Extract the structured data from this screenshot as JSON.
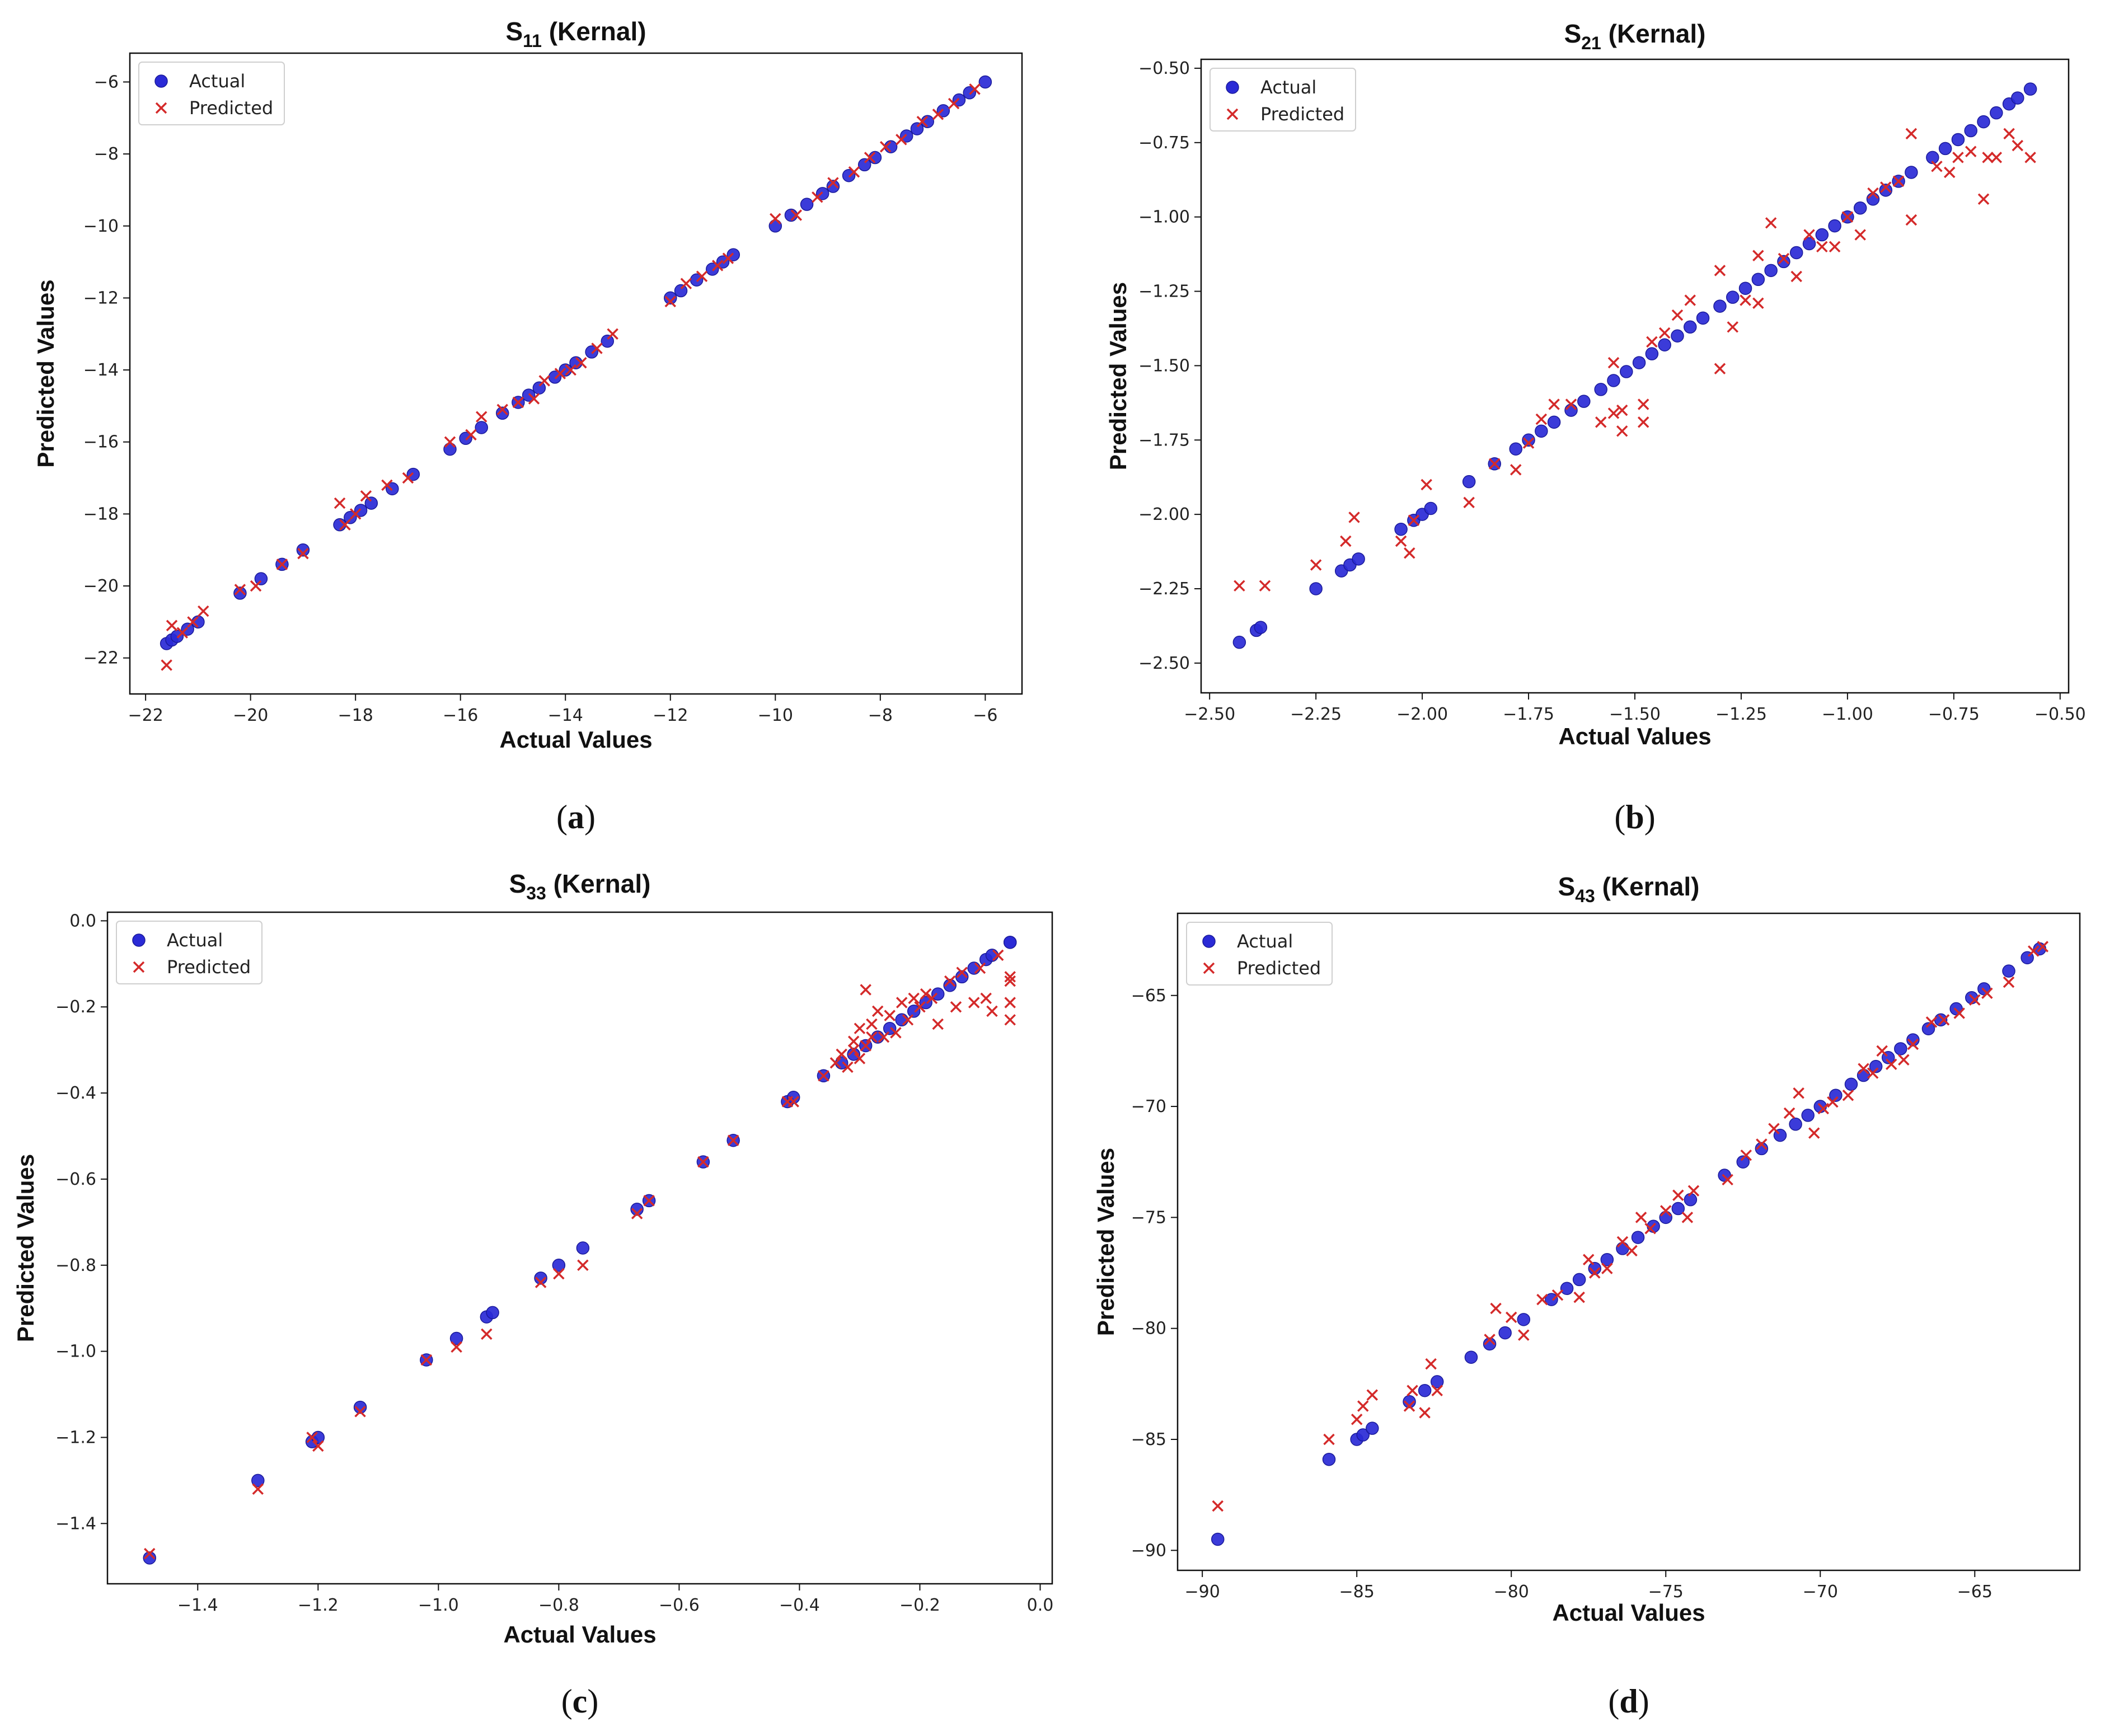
{
  "chart_data": [
    {
      "type": "scatter",
      "id": "a",
      "title": "S",
      "title_sub": "11",
      "title_rest": " (Kernal)",
      "xlabel": "Actual Values",
      "ylabel": "Predicted Values",
      "caption": "a",
      "xlim": [
        -22.3,
        -5.3
      ],
      "ylim": [
        -23.0,
        -5.2
      ],
      "xticks": [
        -22,
        -20,
        -18,
        -16,
        -14,
        -12,
        -10,
        -8,
        -6
      ],
      "yticks": [
        -22,
        -20,
        -18,
        -16,
        -14,
        -12,
        -10,
        -8,
        -6
      ],
      "legend": [
        "Actual",
        "Predicted"
      ],
      "legend_position": "top-left",
      "series": [
        {
          "name": "Actual",
          "marker": "circle",
          "color": "#2a2ad6",
          "x": [
            -21.6,
            -21.5,
            -21.4,
            -21.2,
            -21.0,
            -20.2,
            -19.8,
            -19.4,
            -19.0,
            -18.3,
            -18.1,
            -17.9,
            -17.7,
            -17.3,
            -16.9,
            -16.2,
            -15.9,
            -15.6,
            -15.2,
            -14.9,
            -14.7,
            -14.5,
            -14.2,
            -14.0,
            -13.8,
            -13.5,
            -13.2,
            -12.0,
            -11.8,
            -11.5,
            -11.2,
            -11.0,
            -10.8,
            -10.0,
            -9.7,
            -9.4,
            -9.1,
            -8.9,
            -8.6,
            -8.3,
            -8.1,
            -7.8,
            -7.5,
            -7.3,
            -7.1,
            -6.8,
            -6.5,
            -6.3,
            -6.0
          ],
          "y": [
            -21.6,
            -21.5,
            -21.4,
            -21.2,
            -21.0,
            -20.2,
            -19.8,
            -19.4,
            -19.0,
            -18.3,
            -18.1,
            -17.9,
            -17.7,
            -17.3,
            -16.9,
            -16.2,
            -15.9,
            -15.6,
            -15.2,
            -14.9,
            -14.7,
            -14.5,
            -14.2,
            -14.0,
            -13.8,
            -13.5,
            -13.2,
            -12.0,
            -11.8,
            -11.5,
            -11.2,
            -11.0,
            -10.8,
            -10.0,
            -9.7,
            -9.4,
            -9.1,
            -8.9,
            -8.6,
            -8.3,
            -8.1,
            -7.8,
            -7.5,
            -7.3,
            -7.1,
            -6.8,
            -6.5,
            -6.3,
            -6.0
          ]
        },
        {
          "name": "Predicted",
          "marker": "x",
          "color": "#d42a2a",
          "x": [
            -21.6,
            -21.5,
            -21.3,
            -21.1,
            -20.9,
            -20.2,
            -19.9,
            -19.4,
            -19.0,
            -18.3,
            -18.2,
            -18.0,
            -17.8,
            -17.4,
            -17.0,
            -16.2,
            -15.8,
            -15.6,
            -15.2,
            -14.9,
            -14.6,
            -14.4,
            -14.1,
            -13.9,
            -13.7,
            -13.4,
            -13.1,
            -12.0,
            -11.7,
            -11.4,
            -11.1,
            -10.9,
            -10.0,
            -9.6,
            -9.2,
            -8.9,
            -8.5,
            -8.2,
            -7.9,
            -7.6,
            -7.2,
            -6.9,
            -6.6,
            -6.2
          ],
          "y": [
            -22.2,
            -21.1,
            -21.3,
            -21.0,
            -20.7,
            -20.1,
            -20.0,
            -19.4,
            -19.1,
            -17.7,
            -18.3,
            -18.0,
            -17.5,
            -17.2,
            -17.0,
            -16.0,
            -15.8,
            -15.3,
            -15.1,
            -14.9,
            -14.8,
            -14.3,
            -14.1,
            -14.0,
            -13.8,
            -13.4,
            -13.0,
            -12.1,
            -11.6,
            -11.4,
            -11.1,
            -10.9,
            -9.8,
            -9.7,
            -9.2,
            -8.8,
            -8.5,
            -8.1,
            -7.8,
            -7.6,
            -7.1,
            -6.9,
            -6.6,
            -6.2
          ]
        }
      ]
    },
    {
      "type": "scatter",
      "id": "b",
      "title": "S",
      "title_sub": "21",
      "title_rest": " (Kernal)",
      "xlabel": "Actual Values",
      "ylabel": "Predicted Values",
      "caption": "b",
      "xlim": [
        -2.52,
        -0.48
      ],
      "ylim": [
        -2.6,
        -0.47
      ],
      "xticks": [
        -2.5,
        -2.25,
        -2.0,
        -1.75,
        -1.5,
        -1.25,
        -1.0,
        -0.75,
        -0.5
      ],
      "xtick_labels": [
        "−2.50",
        "−2.25",
        "−2.00",
        "−1.75",
        "−1.50",
        "−1.25",
        "−1.00",
        "−0.75",
        "−0.50"
      ],
      "yticks": [
        -2.5,
        -2.25,
        -2.0,
        -1.75,
        -1.5,
        -1.25,
        -1.0,
        -0.75,
        -0.5
      ],
      "ytick_labels": [
        "−2.50",
        "−2.25",
        "−2.00",
        "−1.75",
        "−1.50",
        "−1.25",
        "−1.00",
        "−0.75",
        "−0.50"
      ],
      "legend": [
        "Actual",
        "Predicted"
      ],
      "legend_position": "top-left",
      "series": [
        {
          "name": "Actual",
          "marker": "circle",
          "color": "#2a2ad6",
          "x": [
            -2.43,
            -2.39,
            -2.38,
            -2.25,
            -2.19,
            -2.17,
            -2.15,
            -2.05,
            -2.02,
            -2.0,
            -1.98,
            -1.89,
            -1.83,
            -1.78,
            -1.75,
            -1.72,
            -1.69,
            -1.65,
            -1.62,
            -1.58,
            -1.55,
            -1.52,
            -1.49,
            -1.46,
            -1.43,
            -1.4,
            -1.37,
            -1.34,
            -1.3,
            -1.27,
            -1.24,
            -1.21,
            -1.18,
            -1.15,
            -1.12,
            -1.09,
            -1.06,
            -1.03,
            -1.0,
            -0.97,
            -0.94,
            -0.91,
            -0.88,
            -0.85,
            -0.8,
            -0.77,
            -0.74,
            -0.71,
            -0.68,
            -0.65,
            -0.62,
            -0.6,
            -0.57
          ],
          "y": [
            -2.43,
            -2.39,
            -2.38,
            -2.25,
            -2.19,
            -2.17,
            -2.15,
            -2.05,
            -2.02,
            -2.0,
            -1.98,
            -1.89,
            -1.83,
            -1.78,
            -1.75,
            -1.72,
            -1.69,
            -1.65,
            -1.62,
            -1.58,
            -1.55,
            -1.52,
            -1.49,
            -1.46,
            -1.43,
            -1.4,
            -1.37,
            -1.34,
            -1.3,
            -1.27,
            -1.24,
            -1.21,
            -1.18,
            -1.15,
            -1.12,
            -1.09,
            -1.06,
            -1.03,
            -1.0,
            -0.97,
            -0.94,
            -0.91,
            -0.88,
            -0.85,
            -0.8,
            -0.77,
            -0.74,
            -0.71,
            -0.68,
            -0.65,
            -0.62,
            -0.6,
            -0.57
          ]
        },
        {
          "name": "Predicted",
          "marker": "x",
          "color": "#d42a2a",
          "x": [
            -2.43,
            -2.37,
            -2.25,
            -2.18,
            -2.16,
            -2.05,
            -2.03,
            -2.02,
            -1.99,
            -1.89,
            -1.83,
            -1.78,
            -1.75,
            -1.72,
            -1.69,
            -1.65,
            -1.58,
            -1.55,
            -1.55,
            -1.53,
            -1.53,
            -1.48,
            -1.48,
            -1.46,
            -1.43,
            -1.4,
            -1.37,
            -1.3,
            -1.3,
            -1.27,
            -1.24,
            -1.21,
            -1.21,
            -1.18,
            -1.15,
            -1.12,
            -1.09,
            -1.06,
            -1.03,
            -1.0,
            -0.97,
            -0.94,
            -0.91,
            -0.88,
            -0.85,
            -0.85,
            -0.79,
            -0.76,
            -0.74,
            -0.71,
            -0.68,
            -0.67,
            -0.65,
            -0.62,
            -0.6,
            -0.57
          ],
          "y": [
            -2.24,
            -2.24,
            -2.17,
            -2.09,
            -2.01,
            -2.09,
            -2.13,
            -2.02,
            -1.9,
            -1.96,
            -1.83,
            -1.85,
            -1.76,
            -1.68,
            -1.63,
            -1.63,
            -1.69,
            -1.49,
            -1.66,
            -1.72,
            -1.65,
            -1.63,
            -1.69,
            -1.42,
            -1.39,
            -1.33,
            -1.28,
            -1.51,
            -1.18,
            -1.37,
            -1.28,
            -1.29,
            -1.13,
            -1.02,
            -1.14,
            -1.2,
            -1.06,
            -1.1,
            -1.1,
            -1.0,
            -1.06,
            -0.92,
            -0.9,
            -0.88,
            -0.72,
            -1.01,
            -0.83,
            -0.85,
            -0.8,
            -0.78,
            -0.94,
            -0.8,
            -0.8,
            -0.72,
            -0.76,
            -0.8
          ]
        }
      ]
    },
    {
      "type": "scatter",
      "id": "c",
      "title": "S",
      "title_sub": "33",
      "title_rest": " (Kernal)",
      "xlabel": "Actual Values",
      "ylabel": "Predicted Values",
      "caption": "c",
      "xlim": [
        -1.55,
        0.02
      ],
      "ylim": [
        -1.54,
        0.02
      ],
      "xticks": [
        -1.4,
        -1.2,
        -1.0,
        -0.8,
        -0.6,
        -0.4,
        -0.2,
        0.0
      ],
      "xtick_labels": [
        "−1.4",
        "−1.2",
        "−1.0",
        "−0.8",
        "−0.6",
        "−0.4",
        "−0.2",
        "0.0"
      ],
      "yticks": [
        -1.4,
        -1.2,
        -1.0,
        -0.8,
        -0.6,
        -0.4,
        -0.2,
        0.0
      ],
      "ytick_labels": [
        "−1.4",
        "−1.2",
        "−1.0",
        "−0.8",
        "−0.6",
        "−0.4",
        "−0.2",
        "0.0"
      ],
      "legend": [
        "Actual",
        "Predicted"
      ],
      "legend_position": "top-left",
      "series": [
        {
          "name": "Actual",
          "marker": "circle",
          "color": "#2a2ad6",
          "x": [
            -1.48,
            -1.3,
            -1.21,
            -1.2,
            -1.13,
            -1.02,
            -0.97,
            -0.92,
            -0.91,
            -0.83,
            -0.8,
            -0.76,
            -0.67,
            -0.65,
            -0.56,
            -0.51,
            -0.42,
            -0.41,
            -0.36,
            -0.33,
            -0.31,
            -0.29,
            -0.27,
            -0.25,
            -0.23,
            -0.21,
            -0.19,
            -0.17,
            -0.15,
            -0.13,
            -0.11,
            -0.09,
            -0.08,
            -0.05,
            -0.05
          ],
          "y": [
            -1.48,
            -1.3,
            -1.21,
            -1.2,
            -1.13,
            -1.02,
            -0.97,
            -0.92,
            -0.91,
            -0.83,
            -0.8,
            -0.76,
            -0.67,
            -0.65,
            -0.56,
            -0.51,
            -0.42,
            -0.41,
            -0.36,
            -0.33,
            -0.31,
            -0.29,
            -0.27,
            -0.25,
            -0.23,
            -0.21,
            -0.19,
            -0.17,
            -0.15,
            -0.13,
            -0.11,
            -0.09,
            -0.08,
            -0.05,
            -0.05
          ]
        },
        {
          "name": "Predicted",
          "marker": "x",
          "color": "#d42a2a",
          "x": [
            -1.48,
            -1.3,
            -1.21,
            -1.2,
            -1.13,
            -1.02,
            -0.97,
            -0.92,
            -0.83,
            -0.8,
            -0.76,
            -0.67,
            -0.65,
            -0.56,
            -0.51,
            -0.42,
            -0.41,
            -0.36,
            -0.34,
            -0.33,
            -0.32,
            -0.31,
            -0.31,
            -0.3,
            -0.3,
            -0.29,
            -0.29,
            -0.28,
            -0.28,
            -0.27,
            -0.26,
            -0.25,
            -0.24,
            -0.23,
            -0.22,
            -0.21,
            -0.2,
            -0.19,
            -0.18,
            -0.17,
            -0.15,
            -0.14,
            -0.13,
            -0.11,
            -0.1,
            -0.09,
            -0.08,
            -0.07,
            -0.05,
            -0.05,
            -0.05,
            -0.05
          ],
          "y": [
            -1.47,
            -1.32,
            -1.2,
            -1.22,
            -1.14,
            -1.02,
            -0.99,
            -0.96,
            -0.84,
            -0.82,
            -0.8,
            -0.68,
            -0.65,
            -0.56,
            -0.51,
            -0.42,
            -0.42,
            -0.36,
            -0.33,
            -0.31,
            -0.34,
            -0.3,
            -0.28,
            -0.32,
            -0.25,
            -0.29,
            -0.16,
            -0.27,
            -0.24,
            -0.21,
            -0.27,
            -0.22,
            -0.26,
            -0.19,
            -0.23,
            -0.18,
            -0.2,
            -0.17,
            -0.18,
            -0.24,
            -0.14,
            -0.2,
            -0.12,
            -0.19,
            -0.11,
            -0.18,
            -0.21,
            -0.08,
            -0.13,
            -0.14,
            -0.19,
            -0.23
          ]
        }
      ]
    },
    {
      "type": "scatter",
      "id": "d",
      "title": "S",
      "title_sub": "43",
      "title_rest": " (Kernal)",
      "xlabel": "Actual Values",
      "ylabel": "Predicted Values",
      "caption": "d",
      "xlim": [
        -90.8,
        -61.6
      ],
      "ylim": [
        -90.9,
        -61.3
      ],
      "xticks": [
        -90,
        -85,
        -80,
        -75,
        -70,
        -65
      ],
      "xtick_labels": [
        "−90",
        "−85",
        "−80",
        "−75",
        "−70",
        "−65"
      ],
      "yticks": [
        -90,
        -85,
        -80,
        -75,
        -70,
        -65
      ],
      "ytick_labels": [
        "−90",
        "−85",
        "−80",
        "−75",
        "−70",
        "−65"
      ],
      "legend": [
        "Actual",
        "Predicted"
      ],
      "legend_position": "top-left",
      "series": [
        {
          "name": "Actual",
          "marker": "circle",
          "color": "#2a2ad6",
          "x": [
            -89.5,
            -85.9,
            -85.0,
            -84.8,
            -84.5,
            -83.3,
            -82.8,
            -82.4,
            -81.3,
            -80.7,
            -80.2,
            -79.6,
            -78.7,
            -78.2,
            -77.8,
            -77.3,
            -76.9,
            -76.4,
            -75.9,
            -75.4,
            -75.0,
            -74.6,
            -74.2,
            -73.1,
            -72.5,
            -71.9,
            -71.3,
            -70.8,
            -70.4,
            -70.0,
            -69.5,
            -69.0,
            -68.6,
            -68.2,
            -67.8,
            -67.4,
            -67.0,
            -66.5,
            -66.1,
            -65.6,
            -65.1,
            -64.7,
            -63.9,
            -63.3,
            -62.9
          ],
          "y": [
            -89.5,
            -85.9,
            -85.0,
            -84.8,
            -84.5,
            -83.3,
            -82.8,
            -82.4,
            -81.3,
            -80.7,
            -80.2,
            -79.6,
            -78.7,
            -78.2,
            -77.8,
            -77.3,
            -76.9,
            -76.4,
            -75.9,
            -75.4,
            -75.0,
            -74.6,
            -74.2,
            -73.1,
            -72.5,
            -71.9,
            -71.3,
            -70.8,
            -70.4,
            -70.0,
            -69.5,
            -69.0,
            -68.6,
            -68.2,
            -67.8,
            -67.4,
            -67.0,
            -66.5,
            -66.1,
            -65.6,
            -65.1,
            -64.7,
            -63.9,
            -63.3,
            -62.9
          ]
        },
        {
          "name": "Predicted",
          "marker": "x",
          "color": "#d42a2a",
          "x": [
            -89.5,
            -85.9,
            -85.0,
            -84.8,
            -84.5,
            -83.3,
            -83.2,
            -82.8,
            -82.6,
            -82.4,
            -80.7,
            -80.5,
            -80.0,
            -79.6,
            -79.0,
            -78.5,
            -77.8,
            -77.5,
            -77.3,
            -76.9,
            -76.4,
            -76.1,
            -75.8,
            -75.5,
            -75.0,
            -74.6,
            -74.3,
            -74.1,
            -73.0,
            -72.4,
            -71.9,
            -71.5,
            -71.0,
            -70.7,
            -70.2,
            -69.9,
            -69.6,
            -69.1,
            -68.6,
            -68.3,
            -68.0,
            -67.7,
            -67.3,
            -67.0,
            -66.4,
            -66.0,
            -65.5,
            -65.0,
            -64.6,
            -63.9,
            -63.1,
            -62.8
          ],
          "y": [
            -88.0,
            -85.0,
            -84.1,
            -83.5,
            -83.0,
            -83.5,
            -82.8,
            -83.8,
            -81.6,
            -82.8,
            -80.5,
            -79.1,
            -79.5,
            -80.3,
            -78.7,
            -78.5,
            -78.6,
            -76.9,
            -77.5,
            -77.3,
            -76.1,
            -76.5,
            -75.0,
            -75.5,
            -74.7,
            -74.0,
            -75.0,
            -73.8,
            -73.3,
            -72.2,
            -71.7,
            -71.0,
            -70.3,
            -69.4,
            -71.2,
            -70.1,
            -69.8,
            -69.5,
            -68.3,
            -68.5,
            -67.5,
            -68.1,
            -67.9,
            -67.2,
            -66.2,
            -66.1,
            -65.8,
            -65.2,
            -64.9,
            -64.4,
            -63.0,
            -62.8
          ]
        }
      ]
    }
  ]
}
